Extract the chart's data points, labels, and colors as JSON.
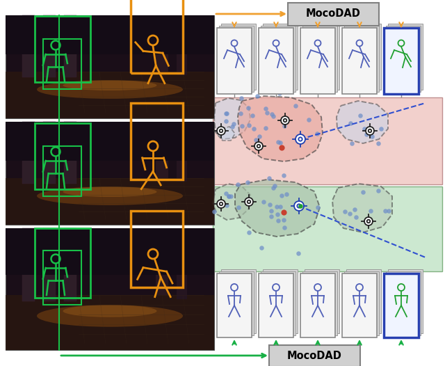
{
  "fig_width": 6.4,
  "fig_height": 5.26,
  "dpi": 100,
  "bg_color": "#ffffff",
  "orange": "#f0a030",
  "green_arrow": "#18b045",
  "blue_line": "#3050d0",
  "pink_bg": "#f2d0cc",
  "green_bg": "#cce8d0",
  "dot_blue": "#7090c8",
  "dot_red": "#c84030",
  "dot_green": "#20a030",
  "mocodad_text": "MocoDAD",
  "green_box": "#18c048",
  "orange_box": "#e89010",
  "card_blue_border": "#2840b0",
  "card_gray_border": "#888888",
  "card_face": "#f5f5f5",
  "card_shadow": "#d8d8d8",
  "blob_edge": "#333333",
  "target_color": "#222222",
  "target_blue": "#2040b0"
}
